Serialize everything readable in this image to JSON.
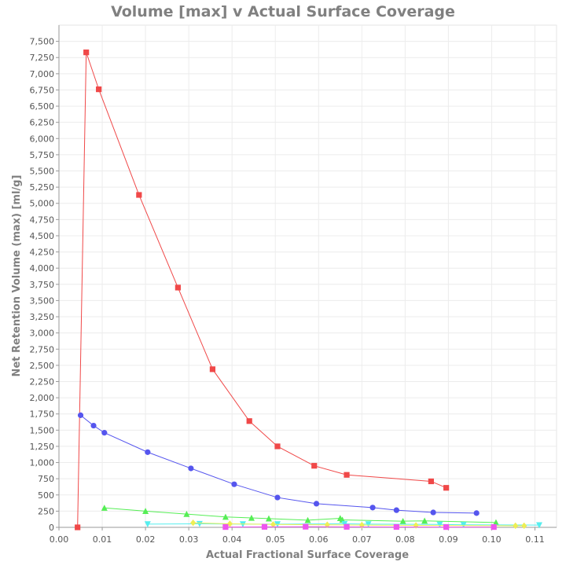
{
  "chart_data": {
    "type": "scatter",
    "title": "Volume [max] v Actual Surface Coverage",
    "xlabel": "Actual Fractional Surface Coverage",
    "ylabel": "Net Retention Volume (max) [ml/g]",
    "xlim": [
      0,
      0.115
    ],
    "ylim": [
      0,
      7750
    ],
    "x_ticks": [
      "0.00",
      "0.01",
      "0.02",
      "0.03",
      "0.04",
      "0.05",
      "0.06",
      "0.07",
      "0.08",
      "0.09",
      "0.10",
      "0.11"
    ],
    "y_ticks": [
      "0",
      "250",
      "500",
      "750",
      "1,000",
      "1,250",
      "1,500",
      "1,750",
      "2,000",
      "2,250",
      "2,500",
      "2,750",
      "3,000",
      "3,250",
      "3,500",
      "3,750",
      "4,000",
      "4,250",
      "4,500",
      "4,750",
      "5,000",
      "5,250",
      "5,500",
      "5,750",
      "6,000",
      "6,250",
      "6,500",
      "6,750",
      "7,000",
      "7,250",
      "7,500"
    ],
    "grid": true,
    "series": [
      {
        "color": "#f04848",
        "marker": "square",
        "points": [
          [
            0.0043,
            0
          ],
          [
            0.0063,
            7330
          ],
          [
            0.0092,
            6760
          ],
          [
            0.0185,
            5130
          ],
          [
            0.0275,
            3700
          ],
          [
            0.0355,
            2440
          ],
          [
            0.044,
            1640
          ],
          [
            0.0505,
            1250
          ],
          [
            0.059,
            950
          ],
          [
            0.0665,
            810
          ],
          [
            0.086,
            710
          ],
          [
            0.0895,
            610
          ]
        ]
      },
      {
        "color": "#5555ee",
        "marker": "circle",
        "points": [
          [
            0.005,
            1730
          ],
          [
            0.008,
            1570
          ],
          [
            0.0105,
            1460
          ],
          [
            0.0205,
            1160
          ],
          [
            0.0305,
            910
          ],
          [
            0.0405,
            665
          ],
          [
            0.0505,
            460
          ],
          [
            0.0595,
            365
          ],
          [
            0.0725,
            305
          ],
          [
            0.078,
            265
          ],
          [
            0.0865,
            230
          ],
          [
            0.0965,
            220
          ]
        ]
      },
      {
        "color": "#55ee55",
        "marker": "triangle-up",
        "points": [
          [
            0.0105,
            300
          ],
          [
            0.02,
            250
          ],
          [
            0.0295,
            205
          ],
          [
            0.0385,
            160
          ],
          [
            0.0445,
            145
          ],
          [
            0.0485,
            135
          ],
          [
            0.0575,
            110
          ],
          [
            0.065,
            140
          ],
          [
            0.0655,
            115
          ],
          [
            0.0795,
            95
          ],
          [
            0.0845,
            100
          ],
          [
            0.101,
            75
          ]
        ]
      },
      {
        "color": "#55eeee",
        "marker": "triangle-down",
        "points": [
          [
            0.0205,
            50
          ],
          [
            0.0325,
            55
          ],
          [
            0.0425,
            50
          ],
          [
            0.0505,
            50
          ],
          [
            0.066,
            55
          ],
          [
            0.0715,
            50
          ],
          [
            0.088,
            45
          ],
          [
            0.0935,
            40
          ],
          [
            0.111,
            35
          ]
        ]
      },
      {
        "color": "#eeee55",
        "marker": "diamond",
        "points": [
          [
            0.031,
            70
          ],
          [
            0.0395,
            55
          ],
          [
            0.0495,
            45
          ],
          [
            0.062,
            40
          ],
          [
            0.07,
            35
          ],
          [
            0.0825,
            30
          ],
          [
            0.1055,
            25
          ],
          [
            0.1075,
            25
          ]
        ]
      },
      {
        "color": "#ee55ee",
        "marker": "square",
        "points": [
          [
            0.0385,
            5
          ],
          [
            0.0475,
            8
          ],
          [
            0.057,
            10
          ],
          [
            0.0665,
            8
          ],
          [
            0.078,
            6
          ],
          [
            0.0895,
            5
          ],
          [
            0.1005,
            5
          ]
        ]
      }
    ]
  }
}
